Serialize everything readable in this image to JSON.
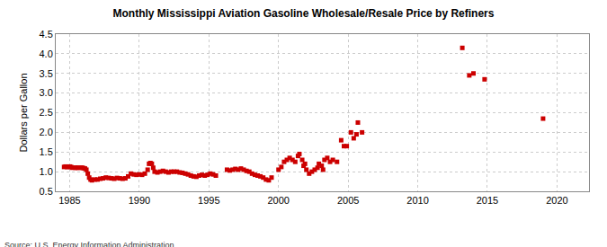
{
  "chart_data": {
    "type": "scatter",
    "title": "Monthly Mississippi Aviation Gasoline Wholesale/Resale Price by Refiners",
    "y_label": "Dollars per Gallon",
    "annotations": [
      "Source: U.S. Energy Information Administration"
    ],
    "color": "#cc0000",
    "marker": "square",
    "grid": true,
    "xlim": [
      1984,
      2022.3
    ],
    "xticks": [
      1985,
      1990,
      1995,
      2000,
      2005,
      2010,
      2015,
      2020
    ],
    "ylim": [
      0.5,
      4.5
    ],
    "yticks": [
      0.5,
      {
        "value": 1,
        "label": "1.0"
      },
      1.5,
      {
        "value": 2,
        "label": "2.0"
      },
      2.5,
      {
        "value": 3,
        "label": "3.0"
      },
      3.5,
      {
        "value": 4,
        "label": "4.0"
      },
      4.5
    ],
    "x": [
      1984.6,
      1984.7,
      1984.8,
      1984.9,
      1985.0,
      1985.1,
      1985.2,
      1985.4,
      1985.5,
      1985.6,
      1985.8,
      1985.9,
      1986.0,
      1986.1,
      1986.2,
      1986.3,
      1986.4,
      1986.5,
      1986.6,
      1986.8,
      1987.0,
      1987.2,
      1987.4,
      1987.6,
      1987.8,
      1988.0,
      1988.2,
      1988.4,
      1988.6,
      1988.8,
      1989.0,
      1989.2,
      1989.4,
      1989.6,
      1989.8,
      1990.0,
      1990.2,
      1990.4,
      1990.6,
      1990.7,
      1990.8,
      1990.9,
      1991.0,
      1991.1,
      1991.3,
      1991.5,
      1991.7,
      1991.9,
      1992.1,
      1992.3,
      1992.5,
      1992.7,
      1992.9,
      1993.1,
      1993.3,
      1993.5,
      1993.7,
      1993.9,
      1994.1,
      1994.3,
      1994.5,
      1994.7,
      1994.9,
      1995.1,
      1995.3,
      1995.5,
      1996.3,
      1996.5,
      1996.7,
      1996.9,
      1997.1,
      1997.3,
      1997.5,
      1997.7,
      1997.9,
      1998.1,
      1998.3,
      1998.5,
      1998.7,
      1998.9,
      1999.1,
      1999.3,
      1999.5,
      2000.0,
      2000.2,
      2000.4,
      2000.6,
      2000.8,
      2001.0,
      2001.2,
      2001.4,
      2001.5,
      2001.7,
      2001.8,
      2001.9,
      2002.0,
      2002.2,
      2002.4,
      2002.6,
      2002.8,
      2002.9,
      2003.1,
      2003.2,
      2003.3,
      2003.5,
      2003.7,
      2003.9,
      2004.2,
      2004.5,
      2004.7,
      2004.9,
      2005.2,
      2005.4,
      2005.6,
      2005.7,
      2006.0,
      2013.2,
      2013.7,
      2014.0,
      2014.8,
      2019.0
    ],
    "values": [
      1.12,
      1.13,
      1.12,
      1.12,
      1.13,
      1.12,
      1.1,
      1.1,
      1.1,
      1.1,
      1.1,
      1.1,
      1.09,
      1.08,
      1.05,
      0.95,
      0.85,
      0.8,
      0.78,
      0.8,
      0.8,
      0.82,
      0.83,
      0.85,
      0.84,
      0.83,
      0.82,
      0.84,
      0.83,
      0.82,
      0.83,
      0.88,
      0.95,
      0.93,
      0.92,
      0.93,
      0.92,
      0.95,
      1.05,
      1.2,
      1.22,
      1.2,
      1.1,
      1.0,
      0.98,
      1.0,
      1.02,
      1.0,
      0.98,
      1.0,
      1.0,
      1.0,
      0.98,
      0.97,
      0.95,
      0.93,
      0.9,
      0.88,
      0.87,
      0.9,
      0.92,
      0.9,
      0.92,
      0.95,
      0.93,
      0.9,
      1.05,
      1.03,
      1.05,
      1.07,
      1.05,
      1.08,
      1.05,
      1.02,
      1.0,
      0.95,
      0.92,
      0.9,
      0.88,
      0.85,
      0.8,
      0.78,
      0.85,
      1.05,
      1.12,
      1.25,
      1.3,
      1.35,
      1.3,
      1.25,
      1.4,
      1.45,
      1.3,
      1.15,
      1.2,
      1.05,
      0.95,
      1.0,
      1.05,
      1.1,
      1.2,
      1.15,
      1.05,
      1.3,
      1.35,
      1.25,
      1.3,
      1.25,
      1.8,
      1.65,
      1.65,
      2.0,
      1.85,
      1.95,
      2.25,
      2.0,
      4.15,
      3.45,
      3.5,
      3.35,
      2.35
    ]
  }
}
